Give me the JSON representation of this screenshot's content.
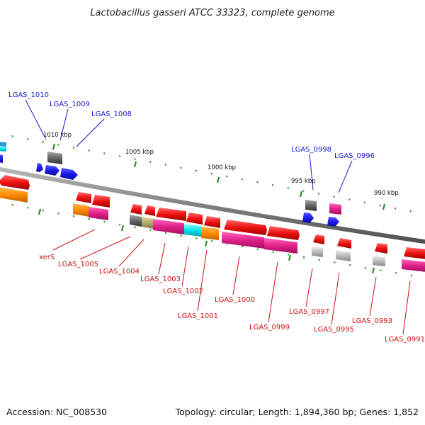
{
  "title": "Lactobacillus gasseri ATCC 33323, complete genome",
  "footer": {
    "accession": "Accession: NC_008530",
    "summary": "Topology: circular; Length: 1,894,360 bp; Genes: 1,852"
  },
  "scale_labels": [
    "1010 kbp",
    "1005 kbp",
    "1000 kbp",
    "995 kbp",
    "990 kbp"
  ],
  "gene_labels_top": [
    "LGAS_1010",
    "LGAS_1009",
    "LGAS_1008",
    "LGAS_0998",
    "LGAS_0996"
  ],
  "gene_labels_bottom": [
    "xerS",
    "LGAS_1005",
    "LGAS_1004",
    "LGAS_1003",
    "LGAS_1002",
    "LGAS_1001",
    "LGAS_1000",
    "LGAS_0999",
    "LGAS_0997",
    "LGAS_0995",
    "LGAS_0993",
    "LGAS_0991"
  ],
  "colors": {
    "backbone": "#8a8a8a",
    "tick": "#2a8a2a",
    "label_top": "#1a1acc",
    "label_bottom": "#cc1111",
    "gene_red": "#ee1111",
    "gene_blue": "#1a1aee",
    "gene_magenta": "#e0208a",
    "gene_orange": "#ff8c00",
    "gene_gray": "#777777",
    "gene_lightgray": "#bbbbbb",
    "gene_cyan": "#00e5ee",
    "gene_khaki": "#b5a96a"
  }
}
